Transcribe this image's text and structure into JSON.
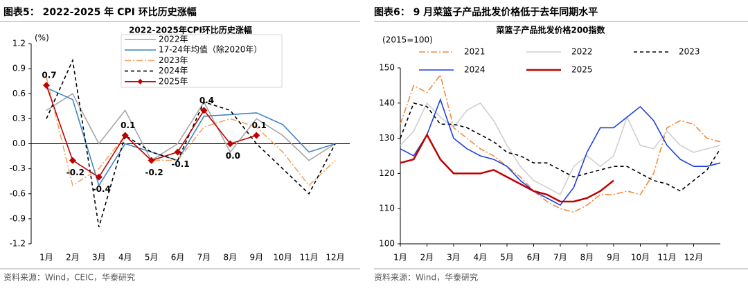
{
  "chart_data": [
    {
      "type": "line",
      "caption": "图表5： 2022-2025 年 CPI 环比历史涨幅",
      "title": "2022-2025年CPI环比历史涨幅",
      "y_unit": "(%)",
      "source": "资料来源：Wind，CEIC，华泰研究",
      "categories": [
        "1月",
        "2月",
        "3月",
        "4月",
        "5月",
        "6月",
        "7月",
        "8月",
        "9月",
        "10月",
        "11月",
        "12月"
      ],
      "ylim": [
        -1.2,
        1.2
      ],
      "yticks": [
        -1.2,
        -0.9,
        -0.6,
        -0.3,
        {
          "value": 0,
          "label": "0.0"
        },
        0.3,
        0.6,
        0.9,
        1.2
      ],
      "series": [
        {
          "name": "2022年",
          "color": "#a6a6a6",
          "style": "solid",
          "values": [
            0.4,
            0.6,
            0.0,
            0.4,
            -0.2,
            0.0,
            0.5,
            -0.1,
            0.3,
            0.1,
            -0.2,
            0.0
          ]
        },
        {
          "name": "17-24年均值（除2020年）",
          "color": "#3f86c6",
          "style": "solid",
          "values": [
            0.67,
            0.53,
            -0.5,
            0.0,
            -0.1,
            -0.2,
            0.33,
            0.35,
            0.37,
            0.23,
            -0.1,
            0.0
          ]
        },
        {
          "name": "2023年",
          "color": "#f4a460",
          "style": "dashdot",
          "values": [
            0.8,
            -0.5,
            -0.3,
            0.1,
            -0.2,
            -0.2,
            0.2,
            0.3,
            0.2,
            -0.1,
            -0.5,
            -0.2
          ]
        },
        {
          "name": "2024年",
          "color": "#000000",
          "style": "dashed",
          "values": [
            0.3,
            1.0,
            -1.0,
            0.1,
            -0.1,
            -0.2,
            0.5,
            0.4,
            0.0,
            -0.3,
            -0.6,
            0.0
          ]
        },
        {
          "name": "2025年",
          "color": "#c00000",
          "style": "solid",
          "marker": "diamond",
          "values": [
            0.7,
            -0.2,
            -0.4,
            0.1,
            -0.2,
            -0.1,
            0.4,
            0.0,
            0.1,
            null,
            null,
            null
          ],
          "value_labels": [
            "0.7",
            "-0.2",
            "-0.4",
            "0.1",
            "-0.2",
            "-0.1",
            "0.4",
            "0.0",
            "0.1",
            null,
            null,
            null
          ]
        }
      ]
    },
    {
      "type": "line",
      "caption": "图表6： 9 月菜篮子产品批发价格低于去年同期水平",
      "title": "菜篮子产品批发价格200指数",
      "y_unit": "(2015=100)",
      "source": "资料来源：Wind，华泰研究",
      "x": [
        1,
        1.5,
        2,
        2.5,
        3,
        3.5,
        4,
        4.5,
        5,
        5.5,
        6,
        6.5,
        7,
        7.5,
        8,
        8.5,
        9,
        9.5,
        10,
        10.5,
        11,
        11.5,
        12,
        12.5,
        13
      ],
      "xlim": [
        1,
        13
      ],
      "xticks": [
        {
          "value": 1,
          "label": "1月"
        },
        {
          "value": 2,
          "label": "2月"
        },
        {
          "value": 3,
          "label": "3月"
        },
        {
          "value": 4,
          "label": "4月"
        },
        {
          "value": 5,
          "label": "5月"
        },
        {
          "value": 6,
          "label": "6月"
        },
        {
          "value": 7,
          "label": "7月"
        },
        {
          "value": 8,
          "label": "8月"
        },
        {
          "value": 9,
          "label": "9月"
        },
        {
          "value": 10,
          "label": "10月"
        },
        {
          "value": 11,
          "label": "11月"
        },
        {
          "value": 12,
          "label": "12月"
        }
      ],
      "ylim": [
        100,
        150
      ],
      "yticks": [
        100,
        110,
        120,
        130,
        140,
        150
      ],
      "series": [
        {
          "name": "2021",
          "color": "#f28a3c",
          "style": "dashdot",
          "values": [
            134,
            145,
            143,
            148,
            133,
            130,
            127,
            125,
            122,
            119,
            115,
            112,
            110,
            109,
            111,
            114,
            114,
            115,
            114,
            120,
            133,
            135,
            134,
            130,
            129
          ]
        },
        {
          "name": "2022",
          "color": "#cfcfcf",
          "style": "solid",
          "values": [
            128,
            132,
            140,
            136,
            133,
            138,
            140,
            135,
            128,
            122,
            118,
            116,
            114,
            122,
            125,
            122,
            125,
            136,
            128,
            127,
            132,
            128,
            126,
            127,
            128
          ]
        },
        {
          "name": "2023",
          "color": "#000000",
          "style": "dashed",
          "values": [
            130,
            140,
            139,
            134,
            134,
            133,
            131,
            129,
            126,
            125,
            123,
            123,
            121,
            119,
            120,
            121,
            122,
            122,
            120,
            118,
            117,
            115,
            118,
            121,
            127
          ]
        },
        {
          "name": "2024",
          "color": "#1f3fe0",
          "style": "solid",
          "values": [
            127,
            125,
            131,
            141,
            130,
            127,
            125,
            124,
            122,
            118,
            115,
            113,
            111,
            116,
            126,
            133,
            133,
            136,
            139,
            135,
            128,
            124,
            122,
            122,
            123
          ]
        },
        {
          "name": "2025",
          "color": "#c00000",
          "style": "thick",
          "values": [
            123,
            124,
            131,
            124,
            120,
            120,
            120,
            121,
            119,
            117,
            115,
            114,
            112,
            112,
            113,
            115,
            118,
            null,
            null,
            null,
            null,
            null,
            null,
            null,
            null
          ]
        }
      ]
    }
  ]
}
